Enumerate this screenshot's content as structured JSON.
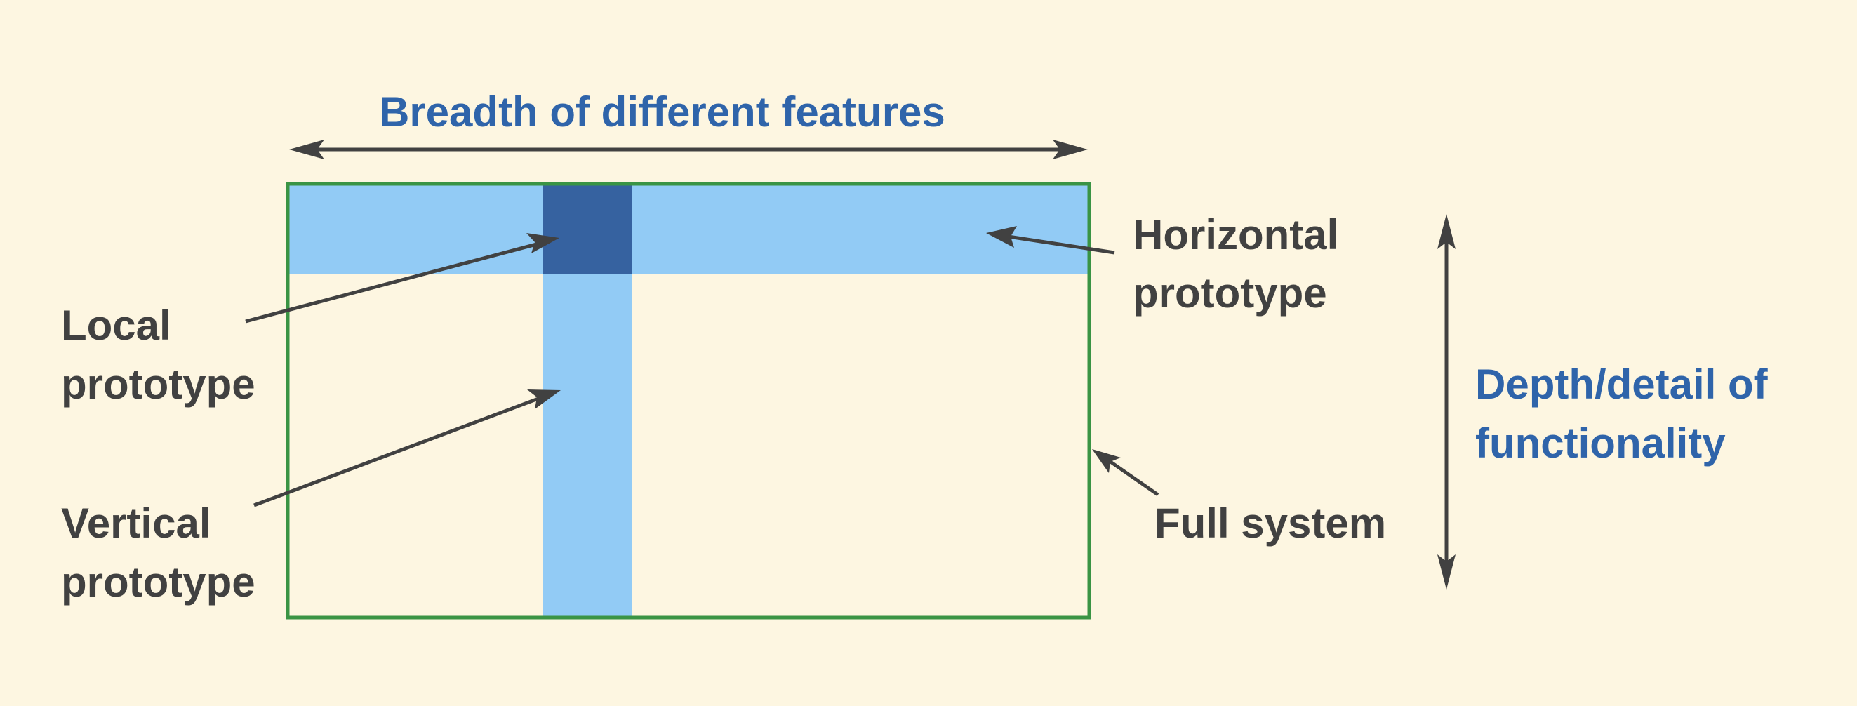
{
  "axes": {
    "breadth_label": "Breadth of different features",
    "depth_label_line1": "Depth/detail of",
    "depth_label_line2": "functionality"
  },
  "labels": {
    "horizontal_line1": "Horizontal",
    "horizontal_line2": "prototype",
    "local_line1": "Local",
    "local_line2": "prototype",
    "vertical_line1": "Vertical",
    "vertical_line2": "prototype",
    "full_system": "Full system"
  },
  "colors": {
    "background": "#fdf6e1",
    "band_light_blue": "#92cbf5",
    "intersection_dark_blue": "#3662a0",
    "frame_green": "#3a9444",
    "arrow_gray": "#414141",
    "text_blue": "#2f64aa",
    "text_gray": "#414141"
  }
}
